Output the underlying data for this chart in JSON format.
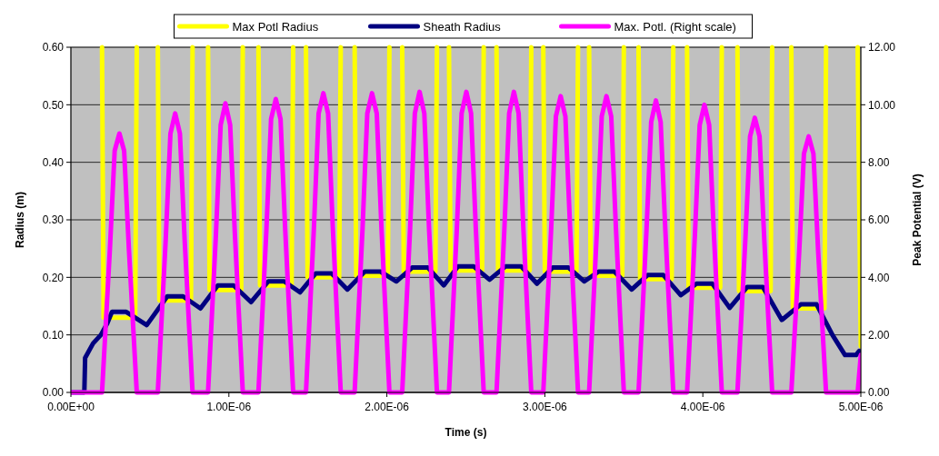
{
  "chart_data": {
    "type": "line",
    "xlabel": "Time (s)",
    "ylabel": "Radius (m)",
    "y2label": "Peak Potential (V)",
    "xlim": [
      0,
      5e-06
    ],
    "xticks": [
      {
        "value": 0,
        "label": "0.00E+00"
      },
      {
        "value": 1e-06,
        "label": "1.00E-06"
      },
      {
        "value": 2e-06,
        "label": "2.00E-06"
      },
      {
        "value": 3e-06,
        "label": "3.00E-06"
      },
      {
        "value": 4e-06,
        "label": "4.00E-06"
      },
      {
        "value": 5e-06,
        "label": "5.00E-06"
      }
    ],
    "ylim": [
      0,
      0.6
    ],
    "yticks": [
      {
        "value": 0,
        "label": "0.00"
      },
      {
        "value": 0.1,
        "label": "0.10"
      },
      {
        "value": 0.2,
        "label": "0.20"
      },
      {
        "value": 0.3,
        "label": "0.30"
      },
      {
        "value": 0.4,
        "label": "0.40"
      },
      {
        "value": 0.5,
        "label": "0.50"
      },
      {
        "value": 0.6,
        "label": "0.60"
      }
    ],
    "y2lim": [
      0,
      12
    ],
    "y2ticks": [
      {
        "value": 0,
        "label": "0.00"
      },
      {
        "value": 2,
        "label": "2.00"
      },
      {
        "value": 4,
        "label": "4.00"
      },
      {
        "value": 6,
        "label": "6.00"
      },
      {
        "value": 8,
        "label": "8.00"
      },
      {
        "value": 10,
        "label": "10.00"
      },
      {
        "value": 12,
        "label": "12.00"
      }
    ],
    "grid": "y",
    "legend": "top",
    "marker": "none",
    "line_style": "solid",
    "series": [
      {
        "name": "Max Potl Radius",
        "color": "#ffff00",
        "x": [
          1.97e-07,
          2.07e-07,
          4.07e-07,
          4.17e-07,
          4.8e-07,
          5.5e-07,
          5.6e-07,
          7.6e-07,
          7.7e-07,
          8.2e-07,
          8.68e-07,
          8.78e-07,
          1.078e-06,
          1.088e-06,
          1.14e-06,
          1.187e-06,
          1.197e-06,
          1.397e-06,
          1.407e-06,
          1.45e-06,
          1.488e-06,
          1.498e-06,
          1.698e-06,
          1.708e-06,
          1.75e-06,
          1.796e-06,
          1.806e-06,
          2.006e-06,
          2.016e-06,
          2.06e-06,
          2.097e-06,
          2.107e-06,
          2.307e-06,
          2.317e-06,
          2.36e-06,
          2.393e-06,
          2.403e-06,
          2.603e-06,
          2.613e-06,
          2.65e-06,
          2.694e-06,
          2.704e-06,
          2.904e-06,
          2.914e-06,
          2.95e-06,
          2.99e-06,
          3e-06,
          3.2e-06,
          3.21e-06,
          3.25e-06,
          3.28e-06,
          3.29e-06,
          3.49e-06,
          3.5e-06,
          3.55e-06,
          3.593e-06,
          3.603e-06,
          3.803e-06,
          3.813e-06,
          3.86e-06,
          3.9e-06,
          3.91e-06,
          4.11e-06,
          4.12e-06,
          4.17e-06,
          4.219e-06,
          4.229e-06,
          4.429e-06,
          4.439e-06,
          4.5e-06,
          4.56e-06,
          4.57e-06,
          4.77e-06,
          4.78e-06,
          4.88e-06,
          4.98e-06,
          5e-06
        ],
        "values": [
          0.6,
          0.13,
          0.13,
          0.6,
          null,
          0.6,
          0.16,
          0.16,
          0.6,
          null,
          0.6,
          0.178,
          0.178,
          0.6,
          null,
          0.6,
          0.186,
          0.186,
          0.6,
          null,
          0.6,
          0.2,
          0.2,
          0.6,
          null,
          0.6,
          0.203,
          0.203,
          0.6,
          null,
          0.6,
          0.21,
          0.21,
          0.6,
          null,
          0.6,
          0.212,
          0.212,
          0.6,
          null,
          0.6,
          0.212,
          0.212,
          0.6,
          null,
          0.6,
          0.21,
          0.21,
          0.6,
          null,
          0.6,
          0.203,
          0.203,
          0.6,
          null,
          0.6,
          0.197,
          0.197,
          0.6,
          null,
          0.6,
          0.182,
          0.182,
          0.6,
          null,
          0.6,
          0.176,
          0.176,
          0.6,
          null,
          0.6,
          0.146,
          0.146,
          0.6,
          null,
          0.6,
          0.08
        ]
      },
      {
        "name": "Sheath Radius",
        "color": "#000080",
        "x": [
          0,
          8.5e-08,
          9e-08,
          1.4e-07,
          1.9e-07,
          2.3e-07,
          2.6e-07,
          3.5e-07,
          4.8e-07,
          6.1e-07,
          7.1e-07,
          8.2e-07,
          9.3e-07,
          1.03e-06,
          1.14e-06,
          1.25e-06,
          1.35e-06,
          1.45e-06,
          1.55e-06,
          1.65e-06,
          1.75e-06,
          1.86e-06,
          1.96e-06,
          2.06e-06,
          2.16e-06,
          2.26e-06,
          2.36e-06,
          2.45e-06,
          2.55e-06,
          2.65e-06,
          2.75e-06,
          2.85e-06,
          2.95e-06,
          3.05e-06,
          3.15e-06,
          3.25e-06,
          3.34e-06,
          3.44e-06,
          3.55e-06,
          3.65e-06,
          3.75e-06,
          3.86e-06,
          3.96e-06,
          4.06e-06,
          4.17e-06,
          4.28e-06,
          4.38e-06,
          4.5e-06,
          4.62e-06,
          4.72e-06,
          4.82e-06,
          4.9e-06,
          4.97e-06,
          4.99e-06,
          5e-06
        ],
        "values": [
          0,
          0,
          0.06,
          0.085,
          0.1,
          0.12,
          0.14,
          0.14,
          0.117,
          0.167,
          0.167,
          0.146,
          0.186,
          0.186,
          0.157,
          0.193,
          0.193,
          0.174,
          0.207,
          0.207,
          0.179,
          0.21,
          0.21,
          0.193,
          0.217,
          0.217,
          0.186,
          0.219,
          0.219,
          0.196,
          0.219,
          0.219,
          0.189,
          0.217,
          0.217,
          0.193,
          0.21,
          0.21,
          0.179,
          0.204,
          0.204,
          0.169,
          0.189,
          0.189,
          0.147,
          0.183,
          0.183,
          0.126,
          0.153,
          0.153,
          0.1,
          0.065,
          0.065,
          0.072,
          0.07
        ]
      },
      {
        "name": "Max. Potl. (Right scale)",
        "color": "#ff00ff",
        "axis": "y2",
        "x": [
          0,
          1.97e-07,
          2.47e-07,
          2.77e-07,
          3.07e-07,
          3.37e-07,
          3.67e-07,
          4.17e-07,
          5.5e-07,
          6e-07,
          6.3e-07,
          6.6e-07,
          6.9e-07,
          7.2e-07,
          7.7e-07,
          8.68e-07,
          9.18e-07,
          9.48e-07,
          9.78e-07,
          1.008e-06,
          1.038e-06,
          1.088e-06,
          1.187e-06,
          1.237e-06,
          1.267e-06,
          1.297e-06,
          1.327e-06,
          1.357e-06,
          1.407e-06,
          1.488e-06,
          1.538e-06,
          1.568e-06,
          1.598e-06,
          1.628e-06,
          1.658e-06,
          1.708e-06,
          1.796e-06,
          1.846e-06,
          1.876e-06,
          1.906e-06,
          1.936e-06,
          1.966e-06,
          2.016e-06,
          2.097e-06,
          2.147e-06,
          2.177e-06,
          2.207e-06,
          2.237e-06,
          2.267e-06,
          2.317e-06,
          2.393e-06,
          2.443e-06,
          2.473e-06,
          2.503e-06,
          2.533e-06,
          2.563e-06,
          2.613e-06,
          2.694e-06,
          2.744e-06,
          2.774e-06,
          2.804e-06,
          2.834e-06,
          2.864e-06,
          2.914e-06,
          2.99e-06,
          3.04e-06,
          3.07e-06,
          3.1e-06,
          3.13e-06,
          3.16e-06,
          3.21e-06,
          3.28e-06,
          3.33e-06,
          3.36e-06,
          3.39e-06,
          3.42e-06,
          3.45e-06,
          3.5e-06,
          3.593e-06,
          3.643e-06,
          3.673e-06,
          3.703e-06,
          3.733e-06,
          3.763e-06,
          3.813e-06,
          3.9e-06,
          3.95e-06,
          3.98e-06,
          4.01e-06,
          4.04e-06,
          4.07e-06,
          4.12e-06,
          4.219e-06,
          4.269e-06,
          4.299e-06,
          4.329e-06,
          4.359e-06,
          4.389e-06,
          4.439e-06,
          4.56e-06,
          4.61e-06,
          4.64e-06,
          4.67e-06,
          4.7e-06,
          4.73e-06,
          4.78e-06,
          4.98e-06,
          5e-06
        ],
        "values": [
          0,
          0,
          5.0,
          8.4,
          9.0,
          8.4,
          5.0,
          0,
          0,
          5.3,
          9.0,
          9.7,
          9.0,
          5.3,
          0,
          0,
          5.5,
          9.3,
          10.05,
          9.3,
          5.5,
          0,
          0,
          5.6,
          9.5,
          10.2,
          9.5,
          5.6,
          0,
          0,
          5.7,
          9.7,
          10.4,
          9.7,
          5.7,
          0,
          0,
          5.7,
          9.7,
          10.4,
          9.7,
          5.7,
          0,
          0,
          5.7,
          9.7,
          10.45,
          9.7,
          5.7,
          0,
          0,
          5.7,
          9.7,
          10.45,
          9.7,
          5.7,
          0,
          0,
          5.7,
          9.7,
          10.45,
          9.7,
          5.7,
          0,
          0,
          5.7,
          9.6,
          10.3,
          9.6,
          5.7,
          0,
          0,
          5.7,
          9.6,
          10.3,
          9.6,
          5.7,
          0,
          0,
          5.6,
          9.4,
          10.15,
          9.4,
          5.6,
          0,
          0,
          5.5,
          9.3,
          10.0,
          9.3,
          5.5,
          0,
          0,
          5.3,
          8.9,
          9.55,
          8.9,
          5.3,
          0,
          0,
          4.9,
          8.3,
          8.9,
          8.3,
          4.9,
          0,
          0,
          1.3
        ]
      }
    ]
  }
}
